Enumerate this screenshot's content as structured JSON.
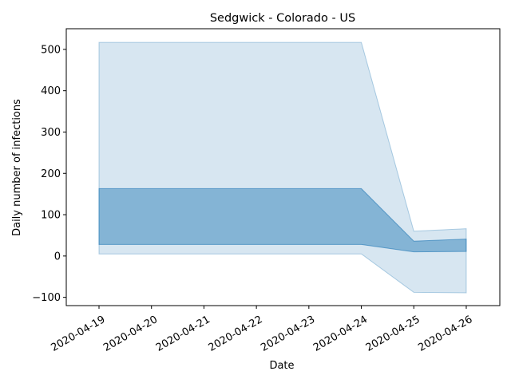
{
  "chart_data": {
    "type": "area",
    "title": "Sedgwick - Colorado - US",
    "xlabel": "Date",
    "ylabel": "Daily number of infections",
    "x": [
      "2020-04-19",
      "2020-04-20",
      "2020-04-21",
      "2020-04-22",
      "2020-04-23",
      "2020-04-24",
      "2020-04-25",
      "2020-04-26"
    ],
    "ylim": [
      -120,
      550
    ],
    "yticks": [
      -100,
      0,
      100,
      200,
      300,
      400,
      500
    ],
    "grid": false,
    "bands": [
      {
        "role": "outer",
        "x": [
          "2020-04-19",
          "2020-04-24",
          "2020-04-25",
          "2020-04-26"
        ],
        "upper": [
          517,
          517,
          60,
          66
        ],
        "lower": [
          5,
          5,
          -88,
          -89
        ],
        "color": "#1f77b4",
        "opacity": 0.18
      },
      {
        "role": "inner",
        "x": [
          "2020-04-19",
          "2020-04-24",
          "2020-04-25",
          "2020-04-26"
        ],
        "upper": [
          163,
          163,
          36,
          41
        ],
        "lower": [
          28,
          28,
          10,
          11
        ],
        "color": "#1f77b4",
        "opacity": 0.45
      }
    ]
  }
}
